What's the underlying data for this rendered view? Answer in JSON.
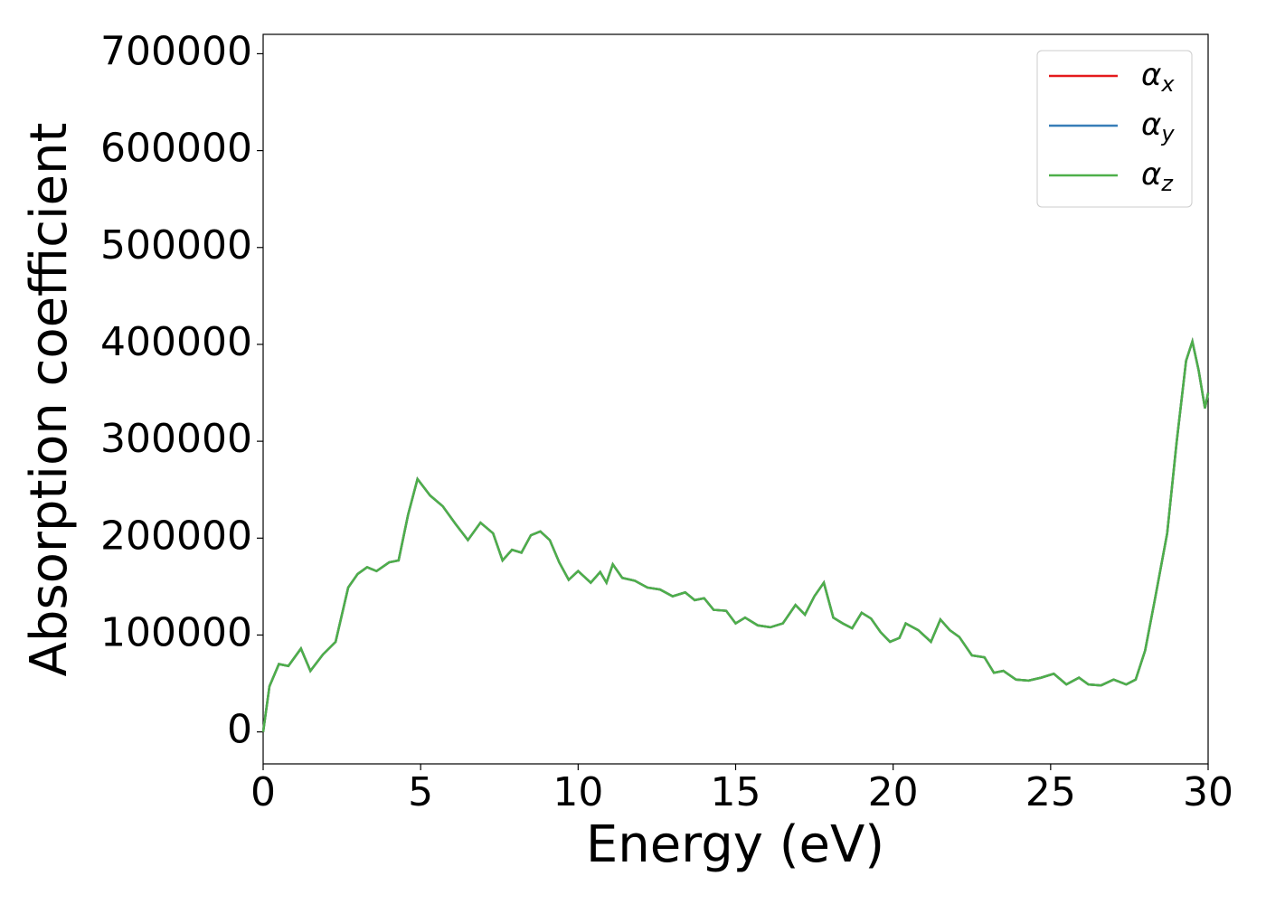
{
  "chart_data": {
    "type": "line",
    "xlabel": "Energy (eV)",
    "ylabel": "Absorption coefficient",
    "x": [
      0,
      0.2,
      0.5,
      0.8,
      1.2,
      1.5,
      1.9,
      2.3,
      2.7,
      3.0,
      3.3,
      3.6,
      4.0,
      4.3,
      4.6,
      4.9,
      5.3,
      5.7,
      6.1,
      6.5,
      6.9,
      7.3,
      7.6,
      7.9,
      8.2,
      8.5,
      8.8,
      9.1,
      9.4,
      9.7,
      10.0,
      10.4,
      10.7,
      10.9,
      11.1,
      11.4,
      11.8,
      12.2,
      12.6,
      13.0,
      13.4,
      13.7,
      14.0,
      14.3,
      14.7,
      15.0,
      15.3,
      15.7,
      16.1,
      16.5,
      16.9,
      17.2,
      17.5,
      17.8,
      18.1,
      18.4,
      18.7,
      19.0,
      19.3,
      19.6,
      19.9,
      20.2,
      20.4,
      20.8,
      21.2,
      21.5,
      21.8,
      22.1,
      22.5,
      22.9,
      23.2,
      23.5,
      23.9,
      24.3,
      24.7,
      25.1,
      25.5,
      25.9,
      26.2,
      26.6,
      27.0,
      27.4,
      27.7,
      28.0,
      28.3,
      28.7,
      29.0,
      29.3,
      29.5,
      29.7,
      29.9,
      30.0
    ],
    "series": [
      {
        "name": "αx",
        "color": "#e41a1c",
        "values": [
          0,
          47000,
          70000,
          68000,
          86000,
          63000,
          80000,
          93000,
          149000,
          163000,
          170000,
          166000,
          175000,
          177000,
          224000,
          261000,
          244000,
          233000,
          215000,
          198000,
          216000,
          205000,
          177000,
          188000,
          185000,
          203000,
          207000,
          198000,
          175000,
          157000,
          166000,
          154000,
          165000,
          154000,
          173000,
          159000,
          156000,
          149000,
          147000,
          140000,
          144000,
          136000,
          138000,
          126000,
          125000,
          112000,
          118000,
          110000,
          108000,
          112000,
          131000,
          121000,
          140000,
          154000,
          118000,
          112000,
          107000,
          123000,
          117000,
          103000,
          93000,
          97000,
          112000,
          105000,
          93000,
          116000,
          105000,
          98000,
          79000,
          77000,
          61000,
          63000,
          54000,
          53000,
          56000,
          60000,
          49000,
          56000,
          49000,
          48000,
          54000,
          49000,
          54000,
          84000,
          135000,
          205000,
          299000,
          383000,
          403000,
          373000,
          334000,
          350000
        ]
      },
      {
        "name": "αy",
        "color": "#377eb8",
        "values": [
          0,
          47000,
          70000,
          68000,
          86000,
          63000,
          80000,
          93000,
          149000,
          163000,
          170000,
          166000,
          175000,
          177000,
          224000,
          261000,
          244000,
          233000,
          215000,
          198000,
          216000,
          205000,
          177000,
          188000,
          185000,
          203000,
          207000,
          198000,
          175000,
          157000,
          166000,
          154000,
          165000,
          154000,
          173000,
          159000,
          156000,
          149000,
          147000,
          140000,
          144000,
          136000,
          138000,
          126000,
          125000,
          112000,
          118000,
          110000,
          108000,
          112000,
          131000,
          121000,
          140000,
          154000,
          118000,
          112000,
          107000,
          123000,
          117000,
          103000,
          93000,
          97000,
          112000,
          105000,
          93000,
          116000,
          105000,
          98000,
          79000,
          77000,
          61000,
          63000,
          54000,
          53000,
          56000,
          60000,
          49000,
          56000,
          49000,
          48000,
          54000,
          49000,
          54000,
          84000,
          135000,
          205000,
          299000,
          383000,
          403000,
          373000,
          334000,
          350000
        ]
      },
      {
        "name": "αz",
        "color": "#4daf4a",
        "values": [
          0,
          47000,
          70000,
          68000,
          86000,
          63000,
          80000,
          93000,
          149000,
          163000,
          170000,
          166000,
          175000,
          177000,
          224000,
          261000,
          244000,
          233000,
          215000,
          198000,
          216000,
          205000,
          177000,
          188000,
          185000,
          203000,
          207000,
          198000,
          175000,
          157000,
          166000,
          154000,
          165000,
          154000,
          173000,
          159000,
          156000,
          149000,
          147000,
          140000,
          144000,
          136000,
          138000,
          126000,
          125000,
          112000,
          118000,
          110000,
          108000,
          112000,
          131000,
          121000,
          140000,
          154000,
          118000,
          112000,
          107000,
          123000,
          117000,
          103000,
          93000,
          97000,
          112000,
          105000,
          93000,
          116000,
          105000,
          98000,
          79000,
          77000,
          61000,
          63000,
          54000,
          53000,
          56000,
          60000,
          49000,
          56000,
          49000,
          48000,
          54000,
          49000,
          54000,
          84000,
          135000,
          205000,
          299000,
          383000,
          403000,
          373000,
          334000,
          350000
        ]
      }
    ],
    "xlim": [
      0,
      30
    ],
    "xticks": [
      0,
      5,
      10,
      15,
      20,
      25,
      30
    ],
    "ylim": [
      -33000,
      720000
    ],
    "yticks": [
      0,
      100000,
      200000,
      300000,
      400000,
      500000,
      600000,
      700000
    ],
    "grid": false,
    "legend": "upper right"
  }
}
